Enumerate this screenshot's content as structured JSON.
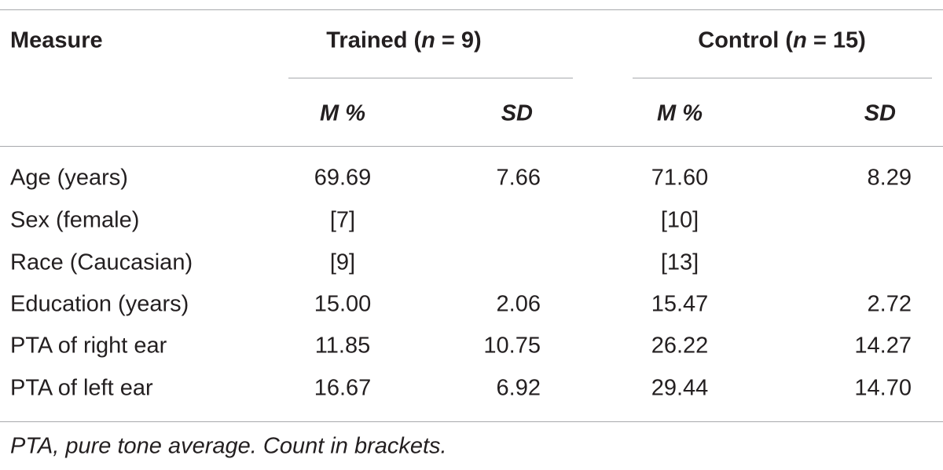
{
  "table": {
    "header": {
      "measure": "Measure",
      "groups": [
        {
          "parts": [
            "Trained (",
            "n",
            " = 9)"
          ]
        },
        {
          "parts": [
            "Control (",
            "n",
            " = 15)"
          ]
        }
      ],
      "subheaders": [
        "M %",
        "SD",
        "M %",
        "SD"
      ]
    },
    "rows": [
      [
        "Age (years)",
        "69.69",
        "7.66",
        "71.60",
        "8.29"
      ],
      [
        "Sex (female)",
        "[7]",
        null,
        "[10]",
        null
      ],
      [
        "Race (Caucasian)",
        "[9]",
        null,
        "[13]",
        null
      ],
      [
        "Education (years)",
        "15.00",
        "2.06",
        "15.47",
        "2.72"
      ],
      [
        "PTA of right ear",
        "11.85",
        "10.75",
        "26.22",
        "14.27"
      ],
      [
        "PTA of left ear",
        "16.67",
        "6.92",
        "29.44",
        "14.70"
      ]
    ],
    "footnote": "PTA, pure tone average. Count in brackets."
  }
}
